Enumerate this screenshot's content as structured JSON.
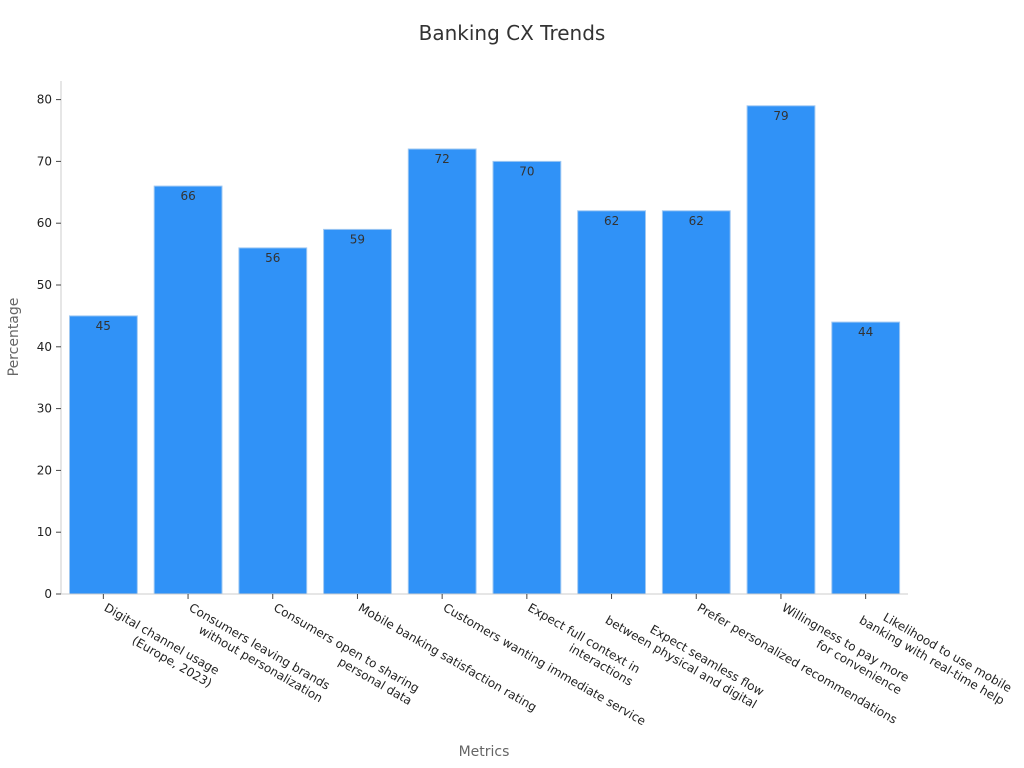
{
  "chart_data": {
    "type": "bar",
    "title": "Banking CX Trends",
    "xlabel": "Metrics",
    "ylabel": "Percentage",
    "categories": [
      [
        "Digital channel usage",
        "(Europe, 2023)"
      ],
      [
        "Consumers leaving brands",
        "without personalization"
      ],
      [
        "Consumers open to sharing",
        "personal data"
      ],
      [
        "Mobile banking satisfaction rating"
      ],
      [
        "Customers wanting immediate service"
      ],
      [
        "Expect full context in",
        "interactions"
      ],
      [
        "Expect seamless flow",
        "between physical and digital"
      ],
      [
        "Prefer personalized recommendations"
      ],
      [
        "Willingness to pay more",
        "for convenience"
      ],
      [
        "Likelihood to use mobile",
        "banking with real-time help"
      ]
    ],
    "values": [
      45,
      66,
      56,
      59,
      72,
      70,
      62,
      62,
      79,
      44
    ],
    "ylim": [
      0,
      83
    ],
    "yticks": [
      0,
      10,
      20,
      30,
      40,
      50,
      60,
      70,
      80
    ],
    "bar_color": "#3092f7",
    "bar_edge_color": "#9fc8f2",
    "grid": false,
    "legend": "none"
  }
}
